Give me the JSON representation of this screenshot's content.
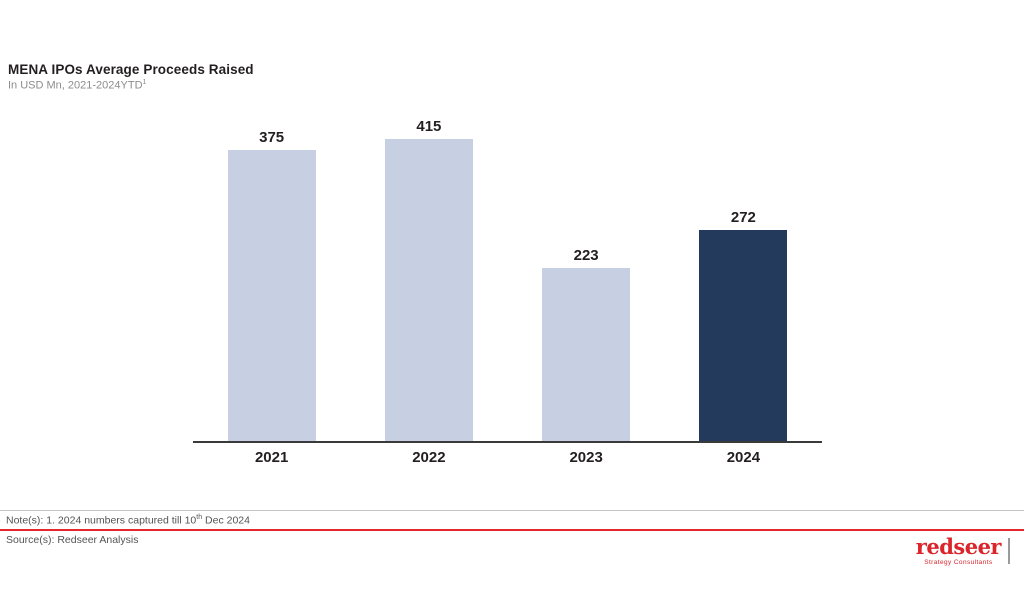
{
  "header": {
    "title": "MENA IPOs Average Proceeds Raised",
    "subtitle_text": "In USD Mn, 2021-2024YTD",
    "subtitle_sup": "1"
  },
  "chart_data": {
    "type": "bar",
    "title": "MENA IPOs Average Proceeds Raised",
    "subtitle": "In USD Mn, 2021-2024YTD¹",
    "categories": [
      "2021",
      "2022",
      "2023",
      "2024"
    ],
    "values": [
      375,
      415,
      223,
      272
    ],
    "bar_colors": [
      "#c6d0e2",
      "#c6d0e2",
      "#c6d0e2",
      "#243a5c"
    ],
    "base_color": "#c6d0e2",
    "highlight_color": "#243a5c",
    "unit": "USD Mn",
    "ylim": [
      0,
      430
    ],
    "grid": false,
    "value_labels": true,
    "legend": false,
    "xlabel": "",
    "ylabel": ""
  },
  "footer": {
    "note_prefix": "Note(s): 1. 2024 numbers captured till 10",
    "note_sup": "th",
    "note_suffix": " Dec 2024",
    "source": "Source(s): Redseer Analysis",
    "red_divider_color": "#e8262d"
  },
  "logo": {
    "name": "redseer",
    "tagline": "Strategy Consultants",
    "color": "#d9252b"
  }
}
